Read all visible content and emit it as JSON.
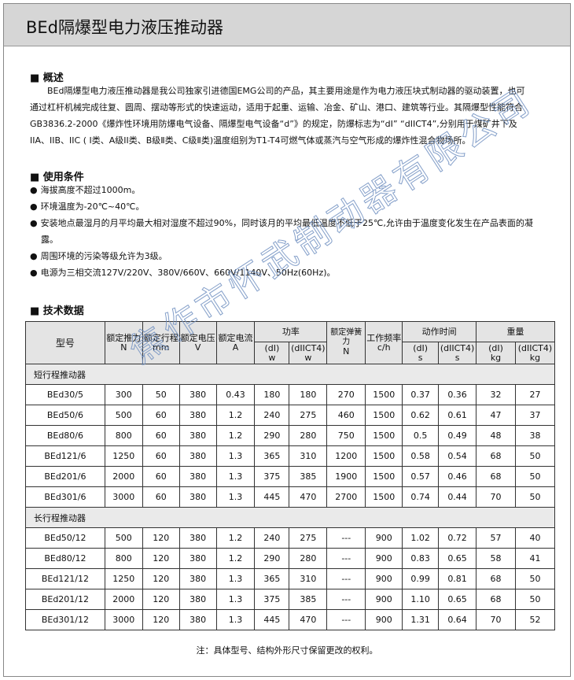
{
  "title": "BEd隔爆型电力液压推动器",
  "overview": {
    "heading": "■ 概述",
    "text": "BEd隔爆型电力液压推动器是我公司独家引进德国EMG公司的产品，其主要用途是作为电力液压块式制动器的驱动装置，也可通过杠杆机械完成往复、圆周、摆动等形式的快速运动，适用于起重、运输、冶金、矿山、港口、建筑等行业。其隔爆型性能符合GB3836.2-2000《爆炸性环境用防爆电气设备、隔爆型电气设备“d”》的规定，防爆标志为“dI” “dIICT4”,分别用于煤矿井下及IIA、IIB、IIC ( I类、A级II类、B级Ⅱ类、C级Ⅱ类)温度组别为T1-T4可燃气体或蒸汽与空气形成的爆炸性混合物场所。"
  },
  "conditions": {
    "heading": "■ 使用条件",
    "items": [
      "海拔高度不超过1000m。",
      "环境温度为-20℃~40℃。",
      "安装地点最湿月的月平均最大相对湿度不超过90%，同时该月的平均最低温度不低于25℃,允许由于温度变化发生在产品表面的凝露。",
      "周围环境的污染等级允许为3级。",
      "电源为三相交流127V/220V、380V/660V、660V/1140V、50Hz(60Hz)。"
    ]
  },
  "specs": {
    "heading": "■ 技术数据",
    "headers": {
      "model": "型号",
      "thrust": "额定推力",
      "thrust_u": "N",
      "stroke": "额定行程",
      "stroke_u": "mm",
      "voltage": "额定电压",
      "voltage_u": "V",
      "current": "额定电流",
      "current_u": "A",
      "power": "功率",
      "p_dl": "(dI)",
      "p_dl_u": "w",
      "p_d2": "(dIICT4)",
      "p_d2_u": "w",
      "spring": "额定弹簧力",
      "spring_u": "N",
      "freq": "工作频率",
      "freq_u": "c/h",
      "time": "动作时间",
      "t_dl": "(dI)",
      "t_dl_u": "s",
      "t_d2": "(dIICT4)",
      "t_d2_u": "s",
      "weight": "重量",
      "w_dl": "(dI)",
      "w_dl_u": "kg",
      "w_d2": "(dIICT4)",
      "w_d2_u": "kg"
    },
    "groups": [
      {
        "name": "短行程推动器",
        "rows": [
          [
            "BEd30/5",
            "300",
            "50",
            "380",
            "0.43",
            "180",
            "180",
            "270",
            "1500",
            "0.37",
            "0.36",
            "32",
            "27"
          ],
          [
            "BEd50/6",
            "500",
            "60",
            "380",
            "1.2",
            "240",
            "275",
            "460",
            "1500",
            "0.62",
            "0.61",
            "47",
            "37"
          ],
          [
            "BEd80/6",
            "800",
            "60",
            "380",
            "1.2",
            "290",
            "280",
            "750",
            "1500",
            "0.5",
            "0.49",
            "48",
            "38"
          ],
          [
            "BEd121/6",
            "1250",
            "60",
            "380",
            "1.3",
            "365",
            "310",
            "1200",
            "1500",
            "0.58",
            "0.54",
            "68",
            "50"
          ],
          [
            "BEd201/6",
            "2000",
            "60",
            "380",
            "1.3",
            "375",
            "385",
            "1900",
            "1500",
            "0.57",
            "0.46",
            "68",
            "50"
          ],
          [
            "BEd301/6",
            "3000",
            "60",
            "380",
            "1.3",
            "445",
            "470",
            "2700",
            "1500",
            "0.74",
            "0.44",
            "70",
            "50"
          ]
        ]
      },
      {
        "name": "长行程推动器",
        "rows": [
          [
            "BEd50/12",
            "500",
            "120",
            "380",
            "1.2",
            "240",
            "275",
            "---",
            "900",
            "1.02",
            "0.72",
            "57",
            "40"
          ],
          [
            "BEd80/12",
            "800",
            "120",
            "380",
            "1.2",
            "290",
            "280",
            "---",
            "900",
            "0.83",
            "0.65",
            "58",
            "41"
          ],
          [
            "BEd121/12",
            "1250",
            "120",
            "380",
            "1.3",
            "365",
            "310",
            "---",
            "900",
            "0.99",
            "0.81",
            "68",
            "50"
          ],
          [
            "BEd201/12",
            "2000",
            "120",
            "380",
            "1.3",
            "375",
            "385",
            "---",
            "900",
            "1.10",
            "0.65",
            "68",
            "50"
          ],
          [
            "BEd301/12",
            "3000",
            "120",
            "380",
            "1.3",
            "445",
            "470",
            "---",
            "900",
            "1.31",
            "0.64",
            "70",
            "52"
          ]
        ]
      }
    ]
  },
  "note": "注：具体型号、结构外形尺寸保留更改的权利。",
  "watermark": "焦作市怀武制动器有限公司"
}
